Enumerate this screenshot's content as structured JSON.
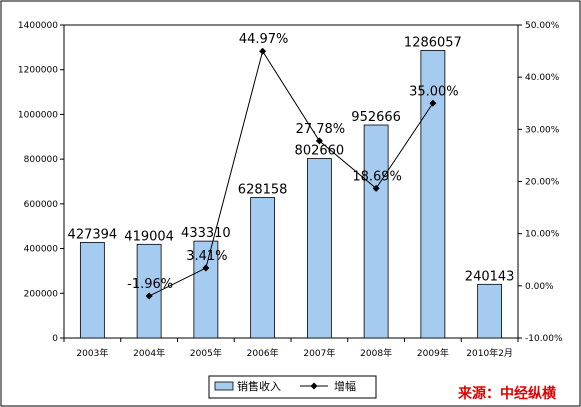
{
  "chart_data": {
    "type": "bar",
    "categories": [
      "2003年",
      "2004年",
      "2005年",
      "2006年",
      "2007年",
      "2008年",
      "2009年",
      "2010年2月"
    ],
    "series": [
      {
        "name": "销售收入",
        "kind": "bar",
        "axis": "left",
        "values": [
          427394,
          419004,
          433310,
          628158,
          802660,
          952666,
          1286057,
          240143
        ],
        "labels": [
          "427394",
          "419004",
          "433310",
          "628158",
          "802660",
          "952666",
          "1286057",
          "240143"
        ],
        "color": "#a6cbf0"
      },
      {
        "name": "增幅",
        "kind": "line",
        "axis": "right",
        "values": [
          null,
          -1.96,
          3.41,
          44.97,
          27.78,
          18.69,
          35.0,
          null
        ],
        "labels": [
          null,
          "-1.96%",
          "3.41%",
          "44.97%",
          "27.78%",
          "18.69%",
          "35.00%",
          null
        ],
        "color": "#000000"
      }
    ],
    "y_left": {
      "min": 0,
      "max": 1400000,
      "ticks": [
        0,
        200000,
        400000,
        600000,
        800000,
        1000000,
        1200000,
        1400000
      ],
      "tick_labels": [
        "0",
        "200000",
        "400000",
        "600000",
        "800000",
        "1000000",
        "1200000",
        "1400000"
      ]
    },
    "y_right": {
      "min": -10,
      "max": 50,
      "ticks": [
        -10,
        0,
        10,
        20,
        30,
        40,
        50
      ],
      "tick_labels": [
        "-10.00%",
        "0.00%",
        "10.00%",
        "20.00%",
        "30.00%",
        "40.00%",
        "50.00%"
      ]
    },
    "grid": false,
    "legend": {
      "position": "bottom"
    },
    "source_note": "来源：中经纵横"
  }
}
